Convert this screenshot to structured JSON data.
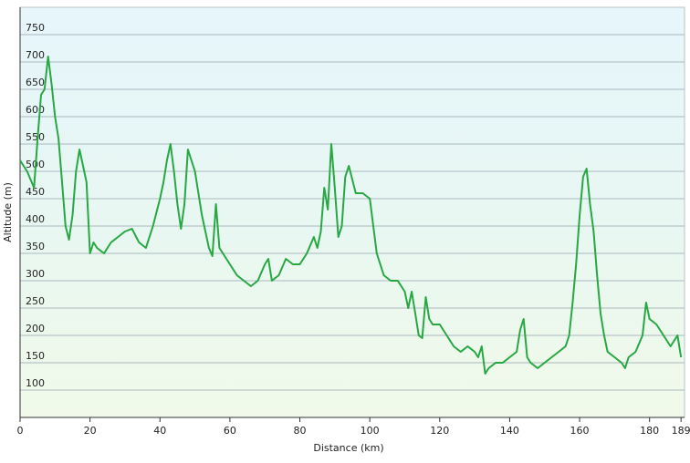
{
  "chart_data": {
    "type": "line",
    "xlabel": "Distance  (km)",
    "ylabel": "Altitude (m)",
    "x": [
      0,
      2,
      4,
      5,
      6,
      7,
      8,
      9,
      10,
      11,
      12,
      13,
      14,
      15,
      16,
      17,
      18,
      19,
      20,
      21,
      22,
      24,
      26,
      28,
      30,
      32,
      34,
      36,
      38,
      40,
      41,
      42,
      43,
      44,
      45,
      46,
      47,
      48,
      50,
      52,
      54,
      55,
      56,
      57,
      58,
      60,
      62,
      64,
      66,
      68,
      70,
      71,
      72,
      74,
      76,
      78,
      80,
      82,
      84,
      85,
      86,
      87,
      88,
      89,
      90,
      91,
      92,
      93,
      94,
      96,
      98,
      100,
      101,
      102,
      104,
      106,
      108,
      110,
      111,
      112,
      113,
      114,
      115,
      116,
      117,
      118,
      120,
      122,
      124,
      126,
      128,
      130,
      131,
      132,
      133,
      134,
      136,
      138,
      140,
      142,
      143,
      144,
      145,
      146,
      148,
      150,
      152,
      154,
      156,
      157,
      158,
      159,
      160,
      161,
      162,
      163,
      164,
      165,
      166,
      167,
      168,
      170,
      172,
      173,
      174,
      176,
      178,
      179,
      180,
      182,
      184,
      186,
      188,
      189
    ],
    "values": [
      520,
      500,
      470,
      560,
      640,
      650,
      710,
      660,
      600,
      560,
      480,
      400,
      375,
      420,
      500,
      540,
      510,
      480,
      350,
      370,
      360,
      350,
      370,
      380,
      390,
      395,
      370,
      360,
      400,
      450,
      480,
      520,
      550,
      500,
      440,
      395,
      440,
      540,
      500,
      420,
      360,
      345,
      440,
      360,
      350,
      330,
      310,
      300,
      290,
      300,
      330,
      340,
      300,
      310,
      340,
      330,
      330,
      350,
      380,
      360,
      390,
      470,
      430,
      550,
      470,
      380,
      400,
      490,
      510,
      460,
      460,
      450,
      400,
      350,
      310,
      300,
      300,
      280,
      250,
      280,
      240,
      200,
      195,
      270,
      230,
      220,
      220,
      200,
      180,
      170,
      180,
      170,
      160,
      180,
      130,
      140,
      150,
      150,
      160,
      170,
      210,
      230,
      160,
      150,
      140,
      150,
      160,
      170,
      180,
      200,
      260,
      330,
      420,
      490,
      505,
      440,
      390,
      310,
      240,
      200,
      170,
      160,
      150,
      140,
      160,
      170,
      200,
      260,
      230,
      220,
      200,
      180,
      200,
      160
    ],
    "color": "#27a843",
    "xlim": [
      0,
      190
    ],
    "ylim": [
      50,
      800
    ],
    "xticks": [
      0,
      20,
      40,
      60,
      80,
      100,
      120,
      140,
      160,
      180,
      189
    ],
    "yticks": [
      100,
      150,
      200,
      250,
      300,
      350,
      400,
      450,
      500,
      550,
      600,
      650,
      700,
      750
    ],
    "grid": true
  }
}
